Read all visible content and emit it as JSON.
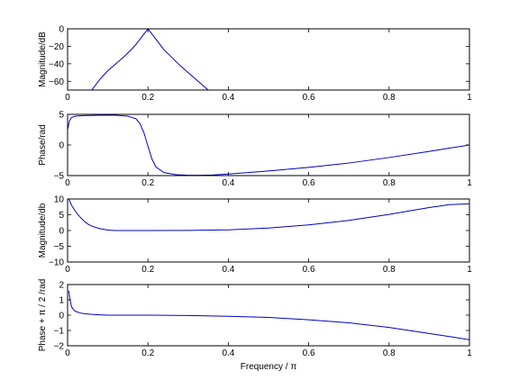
{
  "figure": {
    "xlabel": "Frequency / π"
  },
  "chart_data": [
    {
      "type": "line",
      "title": "",
      "xlabel": "",
      "ylabel": "Magnitude/dB",
      "xlim": [
        0,
        1
      ],
      "ylim": [
        -70,
        0
      ],
      "xticks": [
        0,
        0.2,
        0.4,
        0.6,
        0.8,
        1
      ],
      "xtick_labels": [
        "0",
        "0.2",
        "0.4",
        "0.6",
        "0.8",
        "1"
      ],
      "yticks": [
        0,
        -20,
        -40,
        -60
      ],
      "ytick_labels": [
        "0",
        "−20",
        "−40",
        "−60"
      ],
      "grid": false,
      "line_color": "#0000c8",
      "series": [
        {
          "x": [
            0.06,
            0.08,
            0.1,
            0.12,
            0.14,
            0.16,
            0.17,
            0.18,
            0.19,
            0.195,
            0.2,
            0.205,
            0.21,
            0.22,
            0.23,
            0.24,
            0.26,
            0.28,
            0.3,
            0.32,
            0.34,
            0.35
          ],
          "y": [
            -70,
            -58,
            -48,
            -40,
            -32,
            -23,
            -18,
            -12,
            -6,
            -3,
            0,
            -3,
            -6,
            -12,
            -18,
            -24,
            -33,
            -42,
            -50,
            -58,
            -66,
            -70
          ]
        }
      ]
    },
    {
      "type": "line",
      "title": "",
      "xlabel": "",
      "ylabel": "Phase/rad",
      "xlim": [
        0,
        1
      ],
      "ylim": [
        -5,
        5
      ],
      "xticks": [
        0,
        0.2,
        0.4,
        0.6,
        0.8,
        1
      ],
      "xtick_labels": [
        "0",
        "0.2",
        "0.4",
        "0.6",
        "0.8",
        "1"
      ],
      "yticks": [
        5,
        0,
        -5
      ],
      "ytick_labels": [
        "5",
        "0",
        "−5"
      ],
      "grid": false,
      "line_color": "#0000c8",
      "series": [
        {
          "x": [
            0,
            0.005,
            0.01,
            0.02,
            0.04,
            0.08,
            0.12,
            0.15,
            0.17,
            0.18,
            0.19,
            0.2,
            0.21,
            0.22,
            0.24,
            0.27,
            0.3,
            0.33,
            0.36,
            0.4,
            0.5,
            0.6,
            0.7,
            0.8,
            0.9,
            1.0
          ],
          "y": [
            2.5,
            4.0,
            4.5,
            4.7,
            4.8,
            4.85,
            4.85,
            4.7,
            4.3,
            3.5,
            2.0,
            -0.2,
            -2.3,
            -3.6,
            -4.5,
            -4.85,
            -4.95,
            -4.95,
            -4.9,
            -4.75,
            -4.25,
            -3.65,
            -2.95,
            -2.05,
            -1.05,
            0.0
          ]
        }
      ]
    },
    {
      "type": "line",
      "title": "",
      "xlabel": "",
      "ylabel": "Magnitude/db",
      "xlim": [
        0,
        1
      ],
      "ylim": [
        -10,
        10
      ],
      "xticks": [
        0,
        0.2,
        0.4,
        0.6,
        0.8,
        1
      ],
      "xtick_labels": [
        "0",
        "0.2",
        "0.4",
        "0.6",
        "0.8",
        "1"
      ],
      "yticks": [
        10,
        5,
        0,
        -5,
        -10
      ],
      "ytick_labels": [
        "10",
        "5",
        "0",
        "−5",
        "−10"
      ],
      "grid": false,
      "line_color": "#0000c8",
      "series": [
        {
          "x": [
            0.003,
            0.01,
            0.02,
            0.03,
            0.04,
            0.05,
            0.06,
            0.08,
            0.1,
            0.12,
            0.15,
            0.2,
            0.3,
            0.4,
            0.5,
            0.6,
            0.7,
            0.8,
            0.85,
            0.9,
            0.95,
            1.0
          ],
          "y": [
            10,
            8.0,
            6.0,
            4.4,
            3.1,
            2.1,
            1.4,
            0.6,
            0.15,
            0.0,
            0.0,
            0.0,
            0.05,
            0.2,
            0.8,
            1.8,
            3.2,
            5.1,
            6.2,
            7.3,
            8.2,
            8.5
          ]
        }
      ]
    },
    {
      "type": "line",
      "title": "",
      "xlabel": "Frequency / π",
      "ylabel": "Phase + π / 2 /rad",
      "xlim": [
        0,
        1
      ],
      "ylim": [
        -2,
        2
      ],
      "xticks": [
        0,
        0.2,
        0.4,
        0.6,
        0.8,
        1
      ],
      "xtick_labels": [
        "0",
        "0.2",
        "0.4",
        "0.6",
        "0.8",
        "1"
      ],
      "yticks": [
        2,
        1,
        0,
        -1,
        -2
      ],
      "ytick_labels": [
        "2",
        "1",
        "0",
        "−1",
        "−2"
      ],
      "grid": false,
      "line_color": "#0000c8",
      "series": [
        {
          "x": [
            0.003,
            0.006,
            0.01,
            0.015,
            0.02,
            0.03,
            0.04,
            0.06,
            0.08,
            0.1,
            0.2,
            0.3,
            0.4,
            0.5,
            0.6,
            0.7,
            0.8,
            0.85,
            0.9,
            0.95,
            1.0
          ],
          "y": [
            1.6,
            1.0,
            0.55,
            0.35,
            0.25,
            0.15,
            0.1,
            0.05,
            0.02,
            0.0,
            0.0,
            -0.02,
            -0.07,
            -0.15,
            -0.3,
            -0.5,
            -0.8,
            -1.0,
            -1.2,
            -1.4,
            -1.6
          ]
        }
      ]
    }
  ]
}
